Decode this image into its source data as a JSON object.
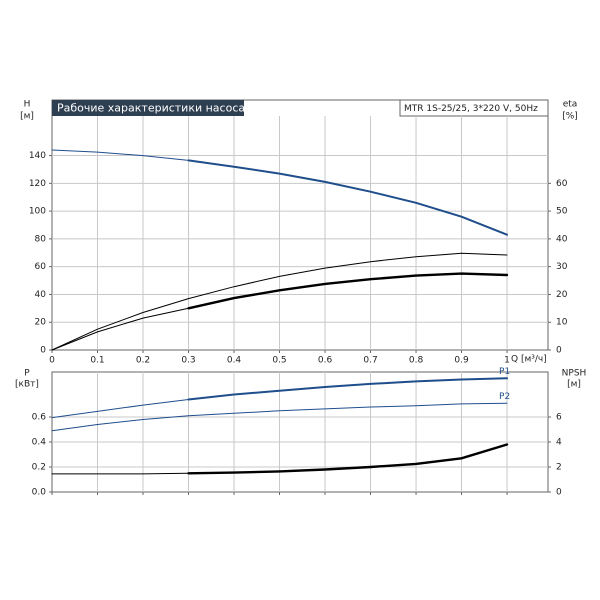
{
  "chart_data": [
    {
      "type": "line",
      "title": "Рабочие характеристики насоса",
      "annotation": "MTR 1S-25/25, 3*220 V, 50Hz",
      "ylabel": "H",
      "yunit": "[м]",
      "y2label": "eta",
      "y2unit": "[%]",
      "xlabel": "Q [м³/ч]",
      "x": [
        0,
        0.1,
        0.2,
        0.3,
        0.4,
        0.5,
        0.6,
        0.7,
        0.8,
        0.9,
        1.0
      ],
      "xlim": [
        0,
        1.09
      ],
      "xticks": [
        0,
        0.1,
        0.2,
        0.3,
        0.4,
        0.5,
        0.6,
        0.7,
        0.8,
        0.9,
        1
      ],
      "ylim": [
        0,
        180
      ],
      "yticks": [
        0,
        20,
        40,
        60,
        80,
        100,
        120,
        140
      ],
      "y2lim": [
        0,
        90
      ],
      "y2ticks": [
        0,
        10,
        20,
        30,
        40,
        50,
        60
      ],
      "grid": true,
      "series": [
        {
          "color": "#1f4e8c",
          "width": 1,
          "values": [
            144,
            142.5,
            140,
            136.5,
            null,
            null,
            null,
            null,
            null,
            null,
            null
          ]
        },
        {
          "color": "#1f4e8c",
          "width": 2,
          "values": [
            null,
            null,
            null,
            136.5,
            132,
            127,
            121,
            114,
            106,
            96,
            83
          ]
        },
        {
          "color": "#000000",
          "width": 1,
          "axis": "y2",
          "values": [
            0,
            7.5,
            13.5,
            18.5,
            22.8,
            26.5,
            29.5,
            31.8,
            33.6,
            34.8,
            34.2
          ]
        },
        {
          "color": "#000000",
          "width": 1,
          "axis": "y2",
          "values": [
            0,
            6.5,
            11.5,
            15,
            null,
            null,
            null,
            null,
            null,
            null,
            null
          ]
        },
        {
          "color": "#000000",
          "width": 2.4,
          "axis": "y2",
          "values": [
            null,
            null,
            null,
            15,
            18.7,
            21.5,
            23.8,
            25.5,
            26.8,
            27.5,
            27
          ]
        }
      ]
    },
    {
      "type": "line",
      "ylabel": "P",
      "yunit": "[кВт]",
      "y2label": "NPSH",
      "y2unit": "[м]",
      "x": [
        0,
        0.1,
        0.2,
        0.3,
        0.4,
        0.5,
        0.6,
        0.7,
        0.8,
        0.9,
        1.0
      ],
      "xlim": [
        0,
        1.09
      ],
      "xticks": [
        0,
        0.1,
        0.2,
        0.3,
        0.4,
        0.5,
        0.6,
        0.7,
        0.8,
        0.9,
        1
      ],
      "ylim": [
        0,
        0.96
      ],
      "yticks": [
        {
          "value": 0,
          "label": "0.0"
        },
        0.2,
        0.4,
        0.6
      ],
      "y2lim": [
        0,
        9.6
      ],
      "y2ticks": [
        0,
        2,
        4,
        6
      ],
      "grid": true,
      "series": [
        {
          "color": "#1f4e8c",
          "width": 1,
          "values": [
            0.595,
            0.645,
            0.695,
            0.74,
            null,
            null,
            null,
            null,
            null,
            null,
            null
          ]
        },
        {
          "name": "P1",
          "color": "#1f4e8c",
          "width": 2,
          "values": [
            null,
            null,
            null,
            0.74,
            0.78,
            0.81,
            0.84,
            0.865,
            0.885,
            0.9,
            0.91
          ]
        },
        {
          "name": "P2",
          "color": "#1f4e8c",
          "width": 1,
          "values": [
            0.49,
            0.54,
            0.58,
            0.61,
            0.63,
            0.65,
            0.665,
            0.68,
            0.69,
            0.705,
            0.71
          ]
        },
        {
          "color": "#000000",
          "width": 1,
          "axis": "y2",
          "values": [
            1.45,
            1.45,
            1.45,
            1.5,
            null,
            null,
            null,
            null,
            null,
            null,
            null
          ]
        },
        {
          "color": "#000000",
          "width": 2.4,
          "axis": "y2",
          "values": [
            null,
            null,
            null,
            1.5,
            1.55,
            1.65,
            1.8,
            2.0,
            2.25,
            2.7,
            3.8
          ]
        }
      ]
    }
  ]
}
